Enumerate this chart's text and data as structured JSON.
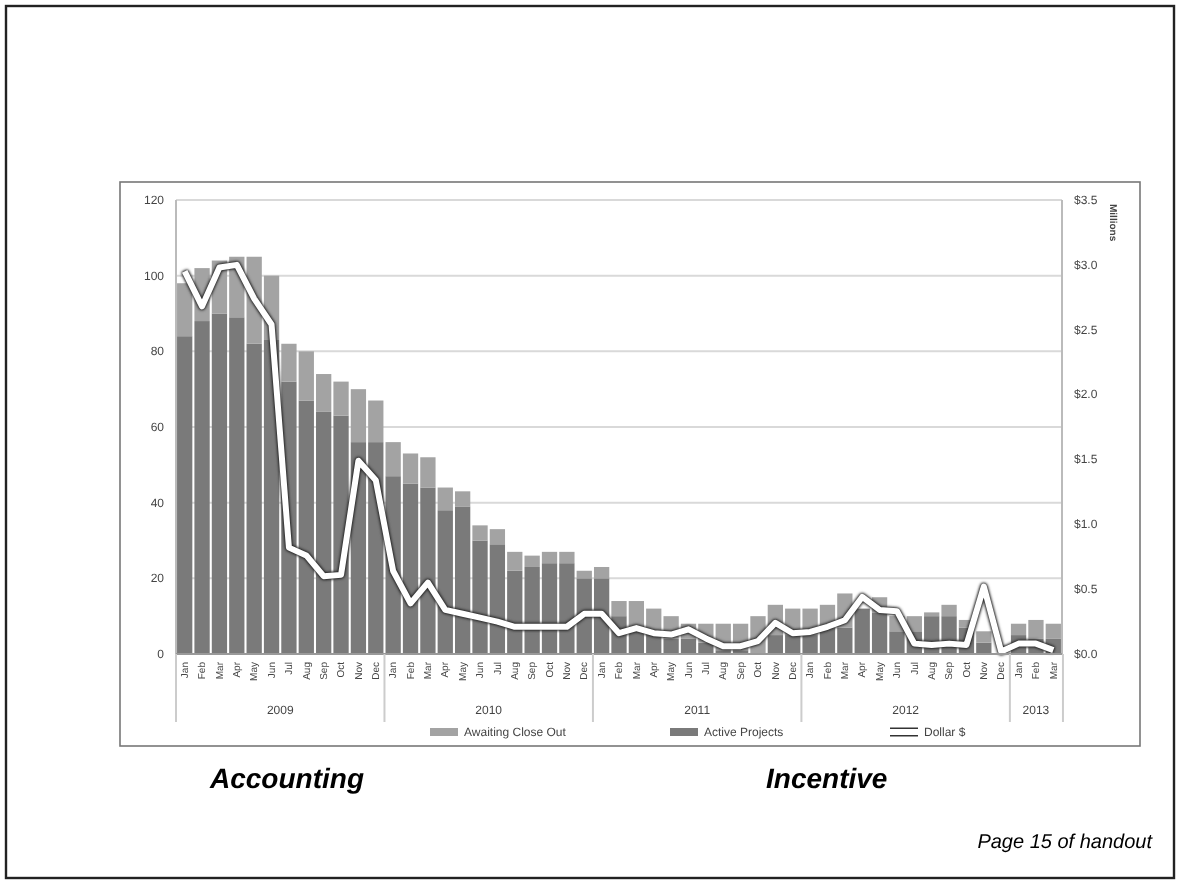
{
  "chart_data": {
    "type": "bar",
    "stacked": true,
    "y2label": "Millions",
    "categories": [
      "Jan",
      "Feb",
      "Mar",
      "Apr",
      "May",
      "Jun",
      "Jul",
      "Aug",
      "Sep",
      "Oct",
      "Nov",
      "Dec",
      "Jan",
      "Feb",
      "Mar",
      "Apr",
      "May",
      "Jun",
      "Jul",
      "Aug",
      "Sep",
      "Oct",
      "Nov",
      "Dec",
      "Jan",
      "Feb",
      "Mar",
      "Apr",
      "May",
      "Jun",
      "Jul",
      "Aug",
      "Sep",
      "Oct",
      "Nov",
      "Dec",
      "Jan",
      "Feb",
      "Mar",
      "Apr",
      "May",
      "Jun",
      "Jul",
      "Aug",
      "Sep",
      "Oct",
      "Nov",
      "Dec",
      "Jan",
      "Feb",
      "Mar"
    ],
    "series": [
      {
        "name": "Active Projects",
        "color": "#7a7a7a",
        "values": [
          84,
          88,
          90,
          89,
          82,
          83,
          72,
          67,
          64,
          63,
          56,
          56,
          47,
          45,
          44,
          38,
          39,
          30,
          29,
          22,
          23,
          24,
          24,
          20,
          20,
          10,
          7,
          6,
          4,
          4,
          3,
          1,
          1,
          0,
          5,
          5,
          5,
          7,
          7,
          12,
          11,
          6,
          6,
          10,
          10,
          7,
          3,
          null,
          5,
          4,
          4
        ]
      },
      {
        "name": "Awaiting Close Out",
        "color": "#a3a3a3",
        "values": [
          14,
          14,
          14,
          16,
          23,
          17,
          10,
          13,
          10,
          9,
          14,
          11,
          9,
          8,
          8,
          6,
          4,
          4,
          4,
          5,
          3,
          3,
          3,
          2,
          3,
          4,
          7,
          6,
          6,
          4,
          5,
          7,
          7,
          10,
          8,
          7,
          7,
          6,
          9,
          null,
          4,
          4,
          4,
          1,
          3,
          2,
          3,
          null,
          3,
          5,
          4
        ]
      },
      {
        "name": "Dollar $",
        "type": "line",
        "axis": "y2",
        "color": "#ffffff",
        "values": [
          2.95,
          2.68,
          2.98,
          3.0,
          2.74,
          2.54,
          0.82,
          0.76,
          0.6,
          0.61,
          1.49,
          1.34,
          0.64,
          0.39,
          0.55,
          0.34,
          0.31,
          0.28,
          0.25,
          0.21,
          0.21,
          0.21,
          0.21,
          0.31,
          0.31,
          0.16,
          0.2,
          0.16,
          0.15,
          0.19,
          0.12,
          0.06,
          0.06,
          0.1,
          0.24,
          0.16,
          0.17,
          0.21,
          0.26,
          0.44,
          0.34,
          0.33,
          0.08,
          0.07,
          0.08,
          0.07,
          0.52,
          0.02,
          0.08,
          0.08,
          0.03
        ]
      }
    ],
    "ylim": [
      0,
      120
    ],
    "yticks": [
      0,
      20,
      40,
      60,
      80,
      100,
      120
    ],
    "y2lim": [
      0,
      3.5
    ],
    "y2ticks": [
      {
        "value": 0,
        "label": "$0.0"
      },
      {
        "value": 0.5,
        "label": "$0.5"
      },
      {
        "value": 1,
        "label": "$1.0"
      },
      {
        "value": 1.5,
        "label": "$1.5"
      },
      {
        "value": 2,
        "label": "$2.0"
      },
      {
        "value": 2.5,
        "label": "$2.5"
      },
      {
        "value": 3,
        "label": "$3.0"
      },
      {
        "value": 3.5,
        "label": "$3.5"
      }
    ],
    "grid": "y",
    "legend": "bottom",
    "annotations": [
      "2009",
      "2010",
      "2011",
      "2012",
      "2013",
      "Accounting",
      "Incentive",
      "Page 15 of handout"
    ]
  }
}
